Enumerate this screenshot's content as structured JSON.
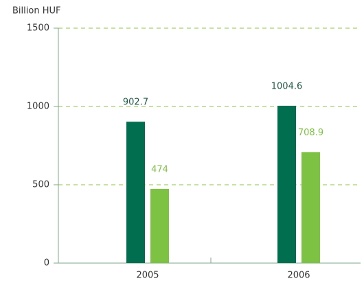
{
  "chart_data": {
    "type": "bar",
    "y_label": "Billion HUF",
    "categories": [
      "2005",
      "2006"
    ],
    "series": [
      {
        "color": "#006e4f",
        "values": [
          902.7,
          1004.6
        ]
      },
      {
        "color": "#7dc242",
        "values": [
          474,
          708.9
        ]
      }
    ],
    "ylim": [
      0,
      1500
    ],
    "yticks": [
      0,
      500,
      1000,
      1500
    ],
    "grid": true
  }
}
